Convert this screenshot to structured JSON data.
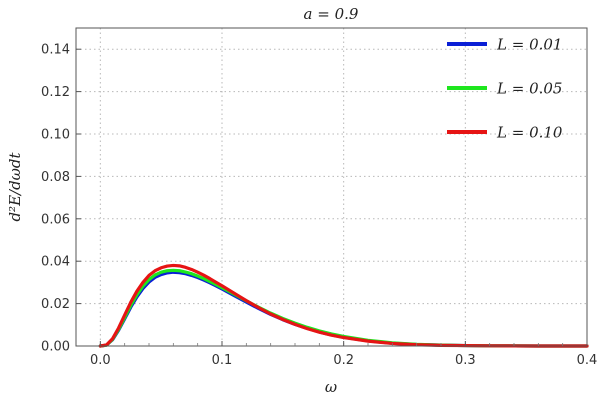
{
  "chart_data": {
    "type": "line",
    "title": "a = 0.9",
    "xlabel": "ω",
    "ylabel": "d²E/dωdt",
    "xlim": [
      -0.02,
      0.4
    ],
    "ylim": [
      0,
      0.15
    ],
    "x_ticks": [
      "0.0",
      "0.1",
      "0.2",
      "0.3",
      "0.4"
    ],
    "y_ticks": [
      "0.00",
      "0.02",
      "0.04",
      "0.06",
      "0.08",
      "0.10",
      "0.12",
      "0.14"
    ],
    "grid": true,
    "legend_position": "top-right",
    "x": [
      0.0,
      0.005,
      0.01,
      0.015,
      0.02,
      0.025,
      0.03,
      0.035,
      0.04,
      0.045,
      0.05,
      0.055,
      0.06,
      0.065,
      0.07,
      0.075,
      0.08,
      0.085,
      0.09,
      0.095,
      0.1,
      0.11,
      0.12,
      0.13,
      0.14,
      0.15,
      0.16,
      0.17,
      0.18,
      0.19,
      0.2,
      0.22,
      0.24,
      0.26,
      0.28,
      0.3,
      0.32,
      0.34,
      0.36,
      0.38,
      0.4
    ],
    "series": [
      {
        "name": "L = 0.01",
        "color": "#0a1fd6",
        "values": [
          0.0,
          0.0004,
          0.0029,
          0.0074,
          0.0128,
          0.0183,
          0.0231,
          0.0271,
          0.0302,
          0.0324,
          0.0337,
          0.0345,
          0.0348,
          0.0346,
          0.0341,
          0.0333,
          0.0323,
          0.0311,
          0.0298,
          0.0284,
          0.0269,
          0.0238,
          0.0207,
          0.0177,
          0.0149,
          0.0124,
          0.0102,
          0.0083,
          0.0066,
          0.0052,
          0.0041,
          0.0024,
          0.0013,
          0.0007,
          0.0004,
          0.0002,
          0.0001,
          5e-05,
          0.0,
          0.0,
          0.0
        ]
      },
      {
        "name": "L = 0.05",
        "color": "#1ee61e",
        "values": [
          0.0,
          0.0004,
          0.0031,
          0.0078,
          0.0134,
          0.0191,
          0.0241,
          0.0282,
          0.0313,
          0.0335,
          0.0348,
          0.0355,
          0.0357,
          0.0355,
          0.0349,
          0.0341,
          0.033,
          0.0318,
          0.0304,
          0.029,
          0.0275,
          0.0244,
          0.0213,
          0.0183,
          0.0155,
          0.013,
          0.0108,
          0.0088,
          0.0071,
          0.0057,
          0.0045,
          0.0027,
          0.0015,
          0.0008,
          0.0004,
          0.0002,
          0.0001,
          5e-05,
          0.0,
          0.0,
          0.0
        ]
      },
      {
        "name": "L = 0.10",
        "color": "#e61414",
        "values": [
          0.0,
          0.0005,
          0.0034,
          0.0085,
          0.0146,
          0.0206,
          0.0258,
          0.03,
          0.0333,
          0.0355,
          0.0369,
          0.0377,
          0.038,
          0.0378,
          0.0371,
          0.0361,
          0.0348,
          0.0334,
          0.0318,
          0.0301,
          0.0284,
          0.0249,
          0.0214,
          0.0181,
          0.0151,
          0.0125,
          0.0102,
          0.0082,
          0.0065,
          0.0051,
          0.004,
          0.0023,
          0.0012,
          0.0006,
          0.0003,
          0.0002,
          0.0001,
          4e-05,
          0.0,
          0.0,
          0.0
        ]
      }
    ]
  }
}
